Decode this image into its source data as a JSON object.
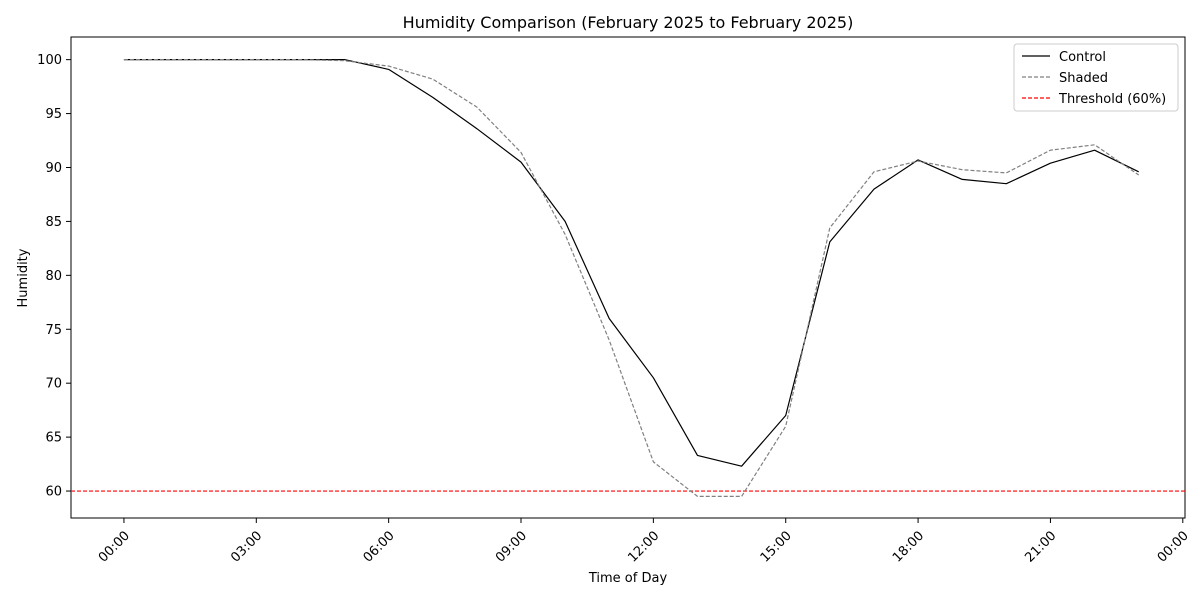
{
  "chart_data": {
    "type": "line",
    "title": "Humidity Comparison (February 2025 to February 2025)",
    "xlabel": "Time of Day",
    "ylabel": "Humidity",
    "xlim_hours": [
      -1.2,
      24.05
    ],
    "ylim": [
      57.5,
      102.1
    ],
    "x_ticks": [
      {
        "hour": 0,
        "label": "00:00"
      },
      {
        "hour": 3,
        "label": "03:00"
      },
      {
        "hour": 6,
        "label": "06:00"
      },
      {
        "hour": 9,
        "label": "09:00"
      },
      {
        "hour": 12,
        "label": "12:00"
      },
      {
        "hour": 15,
        "label": "15:00"
      },
      {
        "hour": 18,
        "label": "18:00"
      },
      {
        "hour": 21,
        "label": "21:00"
      },
      {
        "hour": 24,
        "label": "00:00"
      }
    ],
    "y_ticks": [
      60,
      65,
      70,
      75,
      80,
      85,
      90,
      95,
      100
    ],
    "x_hours": [
      0,
      1,
      2,
      3,
      4,
      5,
      6,
      7,
      8,
      9,
      10,
      11,
      12,
      13,
      14,
      15,
      16,
      17,
      18,
      19,
      20,
      21,
      22,
      23
    ],
    "series": [
      {
        "name": "Control",
        "color": "#000000",
        "dash": "solid",
        "values": [
          100,
          100,
          100,
          100,
          100,
          100,
          99.1,
          96.5,
          93.6,
          90.5,
          85.0,
          76.0,
          70.5,
          63.3,
          62.3,
          67.0,
          83.1,
          88.0,
          90.7,
          88.9,
          88.5,
          90.4,
          91.6,
          89.6
        ]
      },
      {
        "name": "Shaded",
        "color": "#808080",
        "dash": "dashed",
        "values": [
          100,
          100,
          100,
          100,
          100,
          99.9,
          99.4,
          98.2,
          95.6,
          91.4,
          83.8,
          74.0,
          62.7,
          59.5,
          59.5,
          66.0,
          84.4,
          89.6,
          90.6,
          89.8,
          89.5,
          91.6,
          92.1,
          89.3
        ]
      }
    ],
    "threshold": {
      "name": "Threshold (60%)",
      "value": 60,
      "color": "#ff0000",
      "dash": "dashed"
    },
    "legend": "top-right",
    "grid": false
  }
}
